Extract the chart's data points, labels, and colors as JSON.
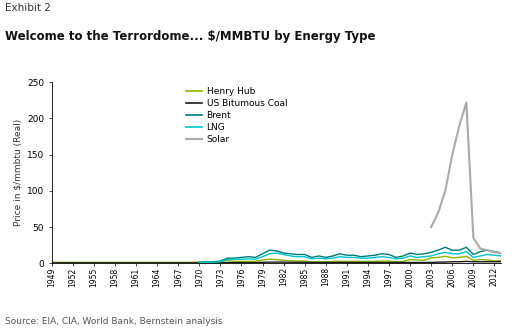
{
  "exhibit_label": "Exhibit 2",
  "title": "Welcome to the Terrordome... $/MMBTU by Energy Type",
  "ylabel": "Price in $/mmbtu (Real)",
  "source": "Source: EIA, CIA, World Bank, Bernstein analysis",
  "henry_hub_years": [
    1949,
    1950,
    1951,
    1952,
    1953,
    1954,
    1955,
    1956,
    1957,
    1958,
    1959,
    1960,
    1961,
    1962,
    1963,
    1964,
    1965,
    1966,
    1967,
    1968,
    1969,
    1970,
    1971,
    1972,
    1973,
    1974,
    1975,
    1976,
    1977,
    1978,
    1979,
    1980,
    1981,
    1982,
    1983,
    1984,
    1985,
    1986,
    1987,
    1988,
    1989,
    1990,
    1991,
    1992,
    1993,
    1994,
    1995,
    1996,
    1997,
    1998,
    1999,
    2000,
    2001,
    2002,
    2003,
    2004,
    2005,
    2006,
    2007,
    2008,
    2009,
    2010,
    2011,
    2012,
    2013
  ],
  "henry_hub_vals": [
    1.2,
    1.2,
    1.2,
    1.2,
    1.2,
    1.2,
    1.2,
    1.2,
    1.2,
    1.2,
    1.2,
    1.2,
    1.2,
    1.2,
    1.2,
    1.2,
    1.2,
    1.2,
    1.2,
    1.2,
    1.2,
    1.5,
    1.5,
    1.5,
    2.0,
    3.5,
    2.5,
    2.5,
    2.5,
    2.5,
    4.5,
    5.5,
    5.0,
    4.0,
    3.5,
    3.0,
    3.0,
    2.0,
    2.0,
    2.0,
    2.5,
    2.5,
    2.5,
    2.5,
    2.5,
    2.5,
    2.5,
    3.0,
    3.0,
    2.0,
    2.5,
    5.0,
    4.5,
    4.0,
    7.5,
    8.0,
    9.5,
    7.5,
    8.0,
    9.5,
    4.0,
    5.0,
    4.5,
    3.0,
    4.0
  ],
  "coal_years": [
    1949,
    1950,
    1951,
    1952,
    1953,
    1954,
    1955,
    1956,
    1957,
    1958,
    1959,
    1960,
    1961,
    1962,
    1963,
    1964,
    1965,
    1966,
    1967,
    1968,
    1969,
    1970,
    1971,
    1972,
    1973,
    1974,
    1975,
    1976,
    1977,
    1978,
    1979,
    1980,
    1981,
    1982,
    1983,
    1984,
    1985,
    1986,
    1987,
    1988,
    1989,
    1990,
    1991,
    1992,
    1993,
    1994,
    1995,
    1996,
    1997,
    1998,
    1999,
    2000,
    2001,
    2002,
    2003,
    2004,
    2005,
    2006,
    2007,
    2008,
    2009,
    2010,
    2011,
    2012,
    2013
  ],
  "coal_vals": [
    0.5,
    0.5,
    0.5,
    0.5,
    0.5,
    0.5,
    0.5,
    0.5,
    0.5,
    0.5,
    0.5,
    0.5,
    0.5,
    0.5,
    0.5,
    0.5,
    0.5,
    0.5,
    0.5,
    0.5,
    0.5,
    0.5,
    0.5,
    0.5,
    0.5,
    0.8,
    0.8,
    0.8,
    0.8,
    0.8,
    1.2,
    1.5,
    1.5,
    1.5,
    1.3,
    1.3,
    1.3,
    1.0,
    1.0,
    1.0,
    1.0,
    1.0,
    1.0,
    1.0,
    1.0,
    1.0,
    1.0,
    1.0,
    1.0,
    1.0,
    1.0,
    1.0,
    1.0,
    1.0,
    1.0,
    1.5,
    1.5,
    2.0,
    2.0,
    2.5,
    2.0,
    2.0,
    2.0,
    2.0,
    2.0
  ],
  "brent_years": [
    1970,
    1971,
    1972,
    1973,
    1974,
    1975,
    1976,
    1977,
    1978,
    1979,
    1980,
    1981,
    1982,
    1983,
    1984,
    1985,
    1986,
    1987,
    1988,
    1989,
    1990,
    1991,
    1992,
    1993,
    1994,
    1995,
    1996,
    1997,
    1998,
    1999,
    2000,
    2001,
    2002,
    2003,
    2004,
    2005,
    2006,
    2007,
    2008,
    2009,
    2010,
    2011,
    2012,
    2013
  ],
  "brent_vals": [
    1.5,
    1.5,
    2,
    3,
    7,
    7,
    8,
    9,
    8,
    13,
    18,
    17,
    14,
    13,
    12,
    12,
    8,
    10,
    8,
    10,
    13,
    11,
    11,
    9,
    10,
    11,
    13,
    12,
    8,
    10,
    14,
    12,
    13,
    15,
    18,
    22,
    18,
    18,
    22,
    12,
    16,
    18,
    16,
    14
  ],
  "lng_years": [
    1970,
    1971,
    1972,
    1973,
    1974,
    1975,
    1976,
    1977,
    1978,
    1979,
    1980,
    1981,
    1982,
    1983,
    1984,
    1985,
    1986,
    1987,
    1988,
    1989,
    1990,
    1991,
    1992,
    1993,
    1994,
    1995,
    1996,
    1997,
    1998,
    1999,
    2000,
    2001,
    2002,
    2003,
    2004,
    2005,
    2006,
    2007,
    2008,
    2009,
    2010,
    2011,
    2012,
    2013
  ],
  "lng_vals": [
    1.0,
    1.0,
    1.5,
    2.0,
    5,
    5.5,
    5.5,
    6,
    5.5,
    9,
    13,
    14,
    12,
    10,
    9,
    9,
    6,
    7,
    6,
    7,
    9,
    8,
    8,
    7,
    7,
    8,
    9,
    8,
    6,
    7,
    10,
    8,
    9,
    10,
    13,
    15,
    13,
    13,
    16,
    8,
    10,
    12,
    11,
    10
  ],
  "solar_years": [
    2003,
    2004,
    2005,
    2006,
    2007,
    2008,
    2009,
    2010,
    2011,
    2012,
    2013
  ],
  "solar_vals": [
    50,
    70,
    100,
    150,
    190,
    222,
    35,
    20,
    18,
    15,
    14
  ],
  "henry_hub_color": "#8db600",
  "coal_color": "#1a1a1a",
  "brent_color": "#007b7b",
  "lng_color": "#00c5cd",
  "solar_color": "#aaaaaa",
  "ylim": [
    0,
    250
  ],
  "yticks": [
    0,
    50,
    100,
    150,
    200,
    250
  ],
  "xlim": [
    1949,
    2013
  ],
  "xtick_start": 1949,
  "xtick_end": 2013,
  "xtick_step": 3,
  "background_color": "#ffffff",
  "legend_labels": [
    "Henry Hub",
    "US Bitumous Coal",
    "Brent",
    "LNG",
    "Solar"
  ],
  "figsize": [
    5.17,
    3.29
  ],
  "dpi": 100
}
